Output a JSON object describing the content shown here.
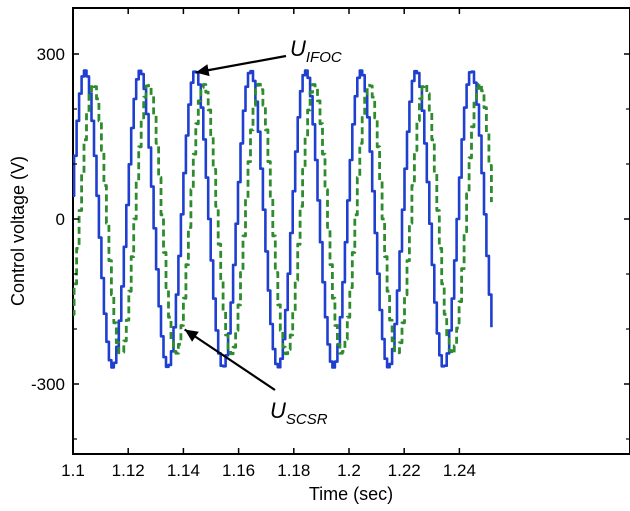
{
  "chart_data": {
    "type": "line",
    "xlabel": "Time (sec)",
    "ylabel": "Control voltage (V)",
    "xlim": [
      1.1,
      1.25
    ],
    "ylim": [
      -420,
      380
    ],
    "x_ticks": [
      1.1,
      1.12,
      1.14,
      1.16,
      1.18,
      1.2,
      1.22,
      1.24
    ],
    "x_tick_labels": [
      "1.1",
      "1.12",
      "1.14",
      "1.16",
      "1.18",
      "1.2",
      "1.22",
      "1.24"
    ],
    "y_ticks": [
      -300,
      0,
      300
    ],
    "y_tick_labels": [
      "-300",
      "0",
      "300"
    ],
    "grid": false,
    "legend": "none",
    "series": [
      {
        "name": "U_IFOC",
        "style": "solid",
        "color": "#1f3fd0",
        "amplitude": 270,
        "period": 0.02,
        "peak_times": [
          1.104,
          1.124,
          1.144,
          1.164,
          1.184,
          1.204,
          1.224,
          1.244
        ],
        "trough_times": [
          1.114,
          1.134,
          1.154,
          1.174,
          1.194,
          1.214,
          1.234
        ]
      },
      {
        "name": "U_SCSR",
        "style": "dashed",
        "color": "#2e8b2e",
        "amplitude": 245,
        "period": 0.02,
        "peak_times": [
          1.107,
          1.127,
          1.147,
          1.167,
          1.187,
          1.207,
          1.227,
          1.247
        ],
        "trough_times": [
          1.117,
          1.137,
          1.157,
          1.177,
          1.197,
          1.217,
          1.237
        ]
      }
    ],
    "annotations": [
      {
        "main": "U",
        "sub": "IFOC",
        "points_to": [
          1.143,
          270
        ]
      },
      {
        "main": "U",
        "sub": "SCSR",
        "points_to": [
          1.139,
          -190
        ]
      }
    ]
  }
}
